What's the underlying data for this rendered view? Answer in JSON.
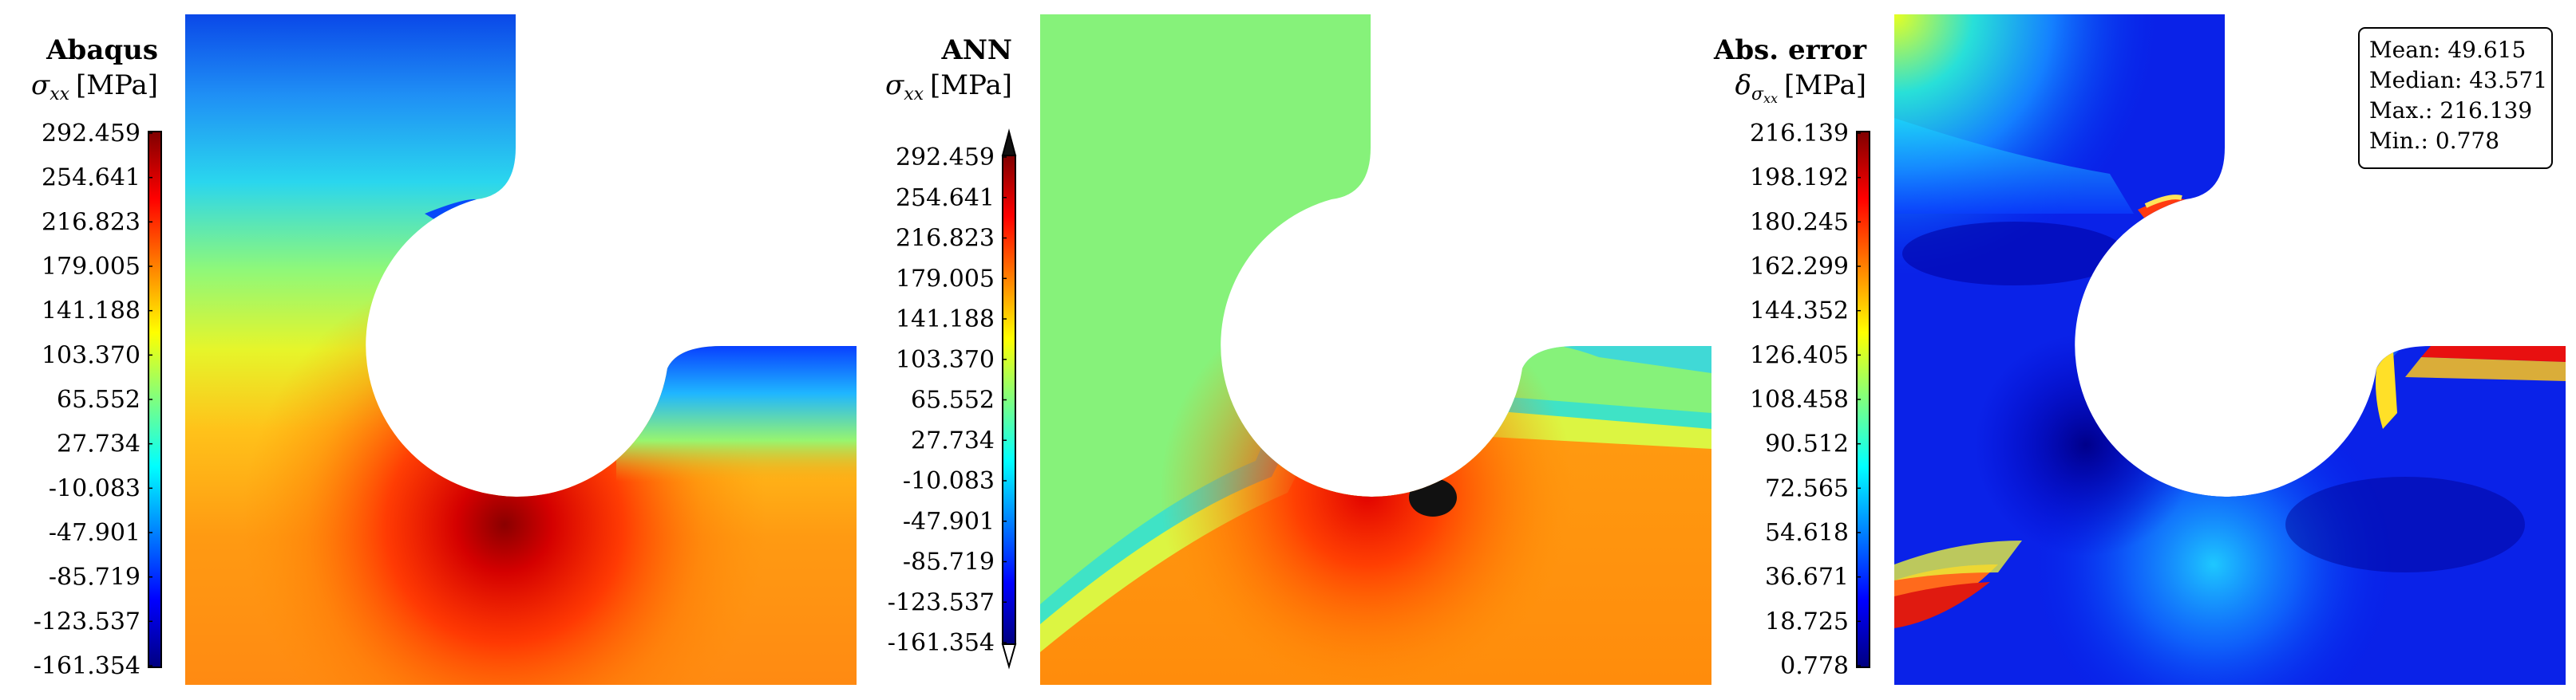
{
  "panels": [
    {
      "id": "abaqus",
      "title": "Abaqus",
      "quantity": "σ",
      "quantity_subscript": "xx",
      "unit": "[MPa]",
      "colorbar_ticks": [
        "292.459",
        "254.641",
        "216.823",
        "179.005",
        "141.188",
        "103.370",
        "65.552",
        "27.734",
        "-10.083",
        "-47.901",
        "-85.719",
        "-123.537",
        "-161.354"
      ],
      "colorbar_style": "plain"
    },
    {
      "id": "ann",
      "title": "ANN",
      "quantity": "σ",
      "quantity_subscript": "xx",
      "unit": "[MPa]",
      "colorbar_ticks": [
        "292.459",
        "254.641",
        "216.823",
        "179.005",
        "141.188",
        "103.370",
        "65.552",
        "27.734",
        "-10.083",
        "-47.901",
        "-85.719",
        "-123.537",
        "-161.354"
      ],
      "colorbar_style": "arrows"
    },
    {
      "id": "abs-error",
      "title": "Abs. error",
      "quantity": "δ",
      "quantity_subscript": "σ",
      "quantity_subsubscript": "xx",
      "unit": "[MPa]",
      "colorbar_ticks": [
        "216.139",
        "198.192",
        "180.245",
        "162.299",
        "144.352",
        "126.405",
        "108.458",
        "90.512",
        "72.565",
        "54.618",
        "36.671",
        "18.725",
        "0.778"
      ],
      "colorbar_style": "plain",
      "stats": [
        {
          "label": "Mean:",
          "value": "49.615"
        },
        {
          "label": "Median:",
          "value": "43.571"
        },
        {
          "label": "Max.:",
          "value": "216.139"
        },
        {
          "label": "Min.:",
          "value": "0.778"
        }
      ]
    }
  ],
  "colormap": "jet",
  "colors": {
    "jet": [
      "#00007f",
      "#0000ff",
      "#007fff",
      "#00ffff",
      "#7fff7f",
      "#ffff00",
      "#ff7f00",
      "#ff0000",
      "#7f0000"
    ],
    "ann_overflow": "#111111"
  }
}
